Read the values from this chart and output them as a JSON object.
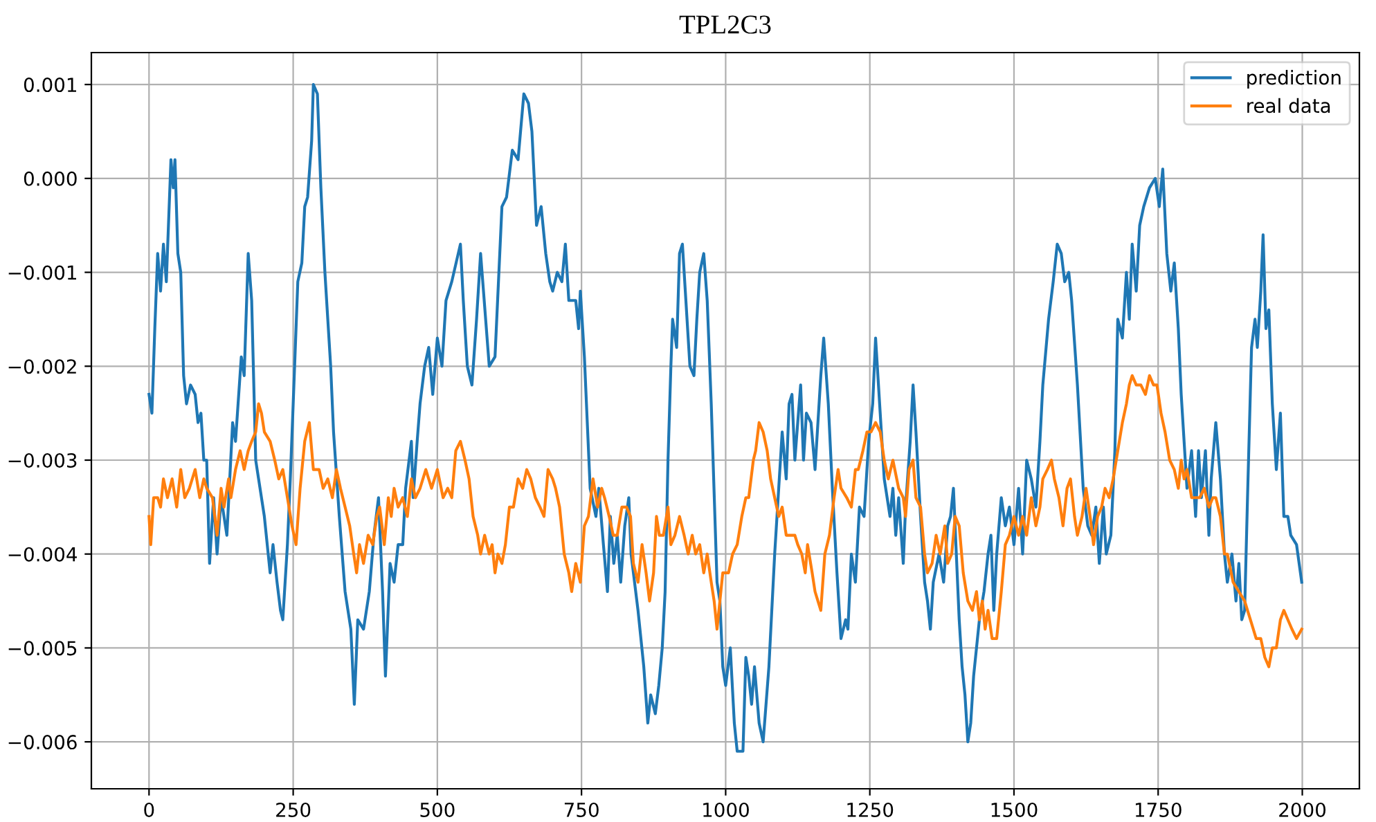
{
  "chart_data": {
    "type": "line",
    "title": "TPL2C3",
    "xlim": [
      -100,
      2099
    ],
    "xticks": [
      0,
      250,
      500,
      750,
      1000,
      1250,
      1500,
      1750,
      2000
    ],
    "ylim": [
      -0.0065,
      0.00134
    ],
    "yticks": [
      {
        "value": 0.001,
        "label": "0.001"
      },
      {
        "value": 0.0,
        "label": "0.000"
      },
      {
        "value": -0.001,
        "label": "−0.001"
      },
      {
        "value": -0.002,
        "label": "−0.002"
      },
      {
        "value": -0.003,
        "label": "−0.003"
      },
      {
        "value": -0.004,
        "label": "−0.004"
      },
      {
        "value": -0.005,
        "label": "−0.005"
      },
      {
        "value": -0.006,
        "label": "−0.006"
      }
    ],
    "grid": true,
    "legend": "top right",
    "series": [
      {
        "name": "prediction",
        "color": "#1f77b4",
        "x": [
          0,
          5,
          10,
          15,
          20,
          25,
          30,
          38,
          42,
          45,
          50,
          55,
          60,
          65,
          72,
          80,
          85,
          90,
          95,
          100,
          105,
          112,
          118,
          125,
          135,
          145,
          150,
          160,
          165,
          172,
          178,
          185,
          190,
          200,
          210,
          215,
          222,
          228,
          232,
          240,
          245,
          250,
          258,
          265,
          270,
          275,
          282,
          285,
          292,
          298,
          305,
          315,
          320,
          330,
          340,
          350,
          356,
          362,
          372,
          382,
          390,
          398,
          405,
          410,
          418,
          425,
          432,
          440,
          445,
          455,
          458,
          465,
          470,
          478,
          485,
          492,
          500,
          508,
          515,
          525,
          540,
          545,
          552,
          560,
          568,
          575,
          580,
          590,
          600,
          612,
          620,
          630,
          640,
          650,
          658,
          664,
          672,
          680,
          688,
          695,
          700,
          708,
          716,
          722,
          728,
          740,
          745,
          748,
          755,
          765,
          775,
          780,
          788,
          795,
          800,
          806,
          812,
          818,
          825,
          832,
          836,
          848,
          858,
          865,
          870,
          878,
          884,
          890,
          895,
          900,
          905,
          908,
          915,
          920,
          925,
          930,
          938,
          945,
          950,
          955,
          962,
          968,
          975,
          985,
          990,
          995,
          1000,
          1008,
          1015,
          1020,
          1030,
          1035,
          1040,
          1045,
          1050,
          1058,
          1065,
          1075,
          1085,
          1092,
          1098,
          1105,
          1110,
          1115,
          1120,
          1125,
          1130,
          1135,
          1140,
          1148,
          1155,
          1165,
          1170,
          1178,
          1185,
          1193,
          1200,
          1208,
          1212,
          1218,
          1225,
          1232,
          1240,
          1248,
          1255,
          1260,
          1268,
          1275,
          1285,
          1290,
          1295,
          1300,
          1308,
          1312,
          1320,
          1325,
          1330,
          1338,
          1342,
          1345,
          1350,
          1355,
          1360,
          1370,
          1378,
          1385,
          1390,
          1395,
          1400,
          1405,
          1410,
          1415,
          1420,
          1425,
          1430,
          1440,
          1448,
          1455,
          1460,
          1465,
          1470,
          1478,
          1485,
          1492,
          1500,
          1508,
          1515,
          1522,
          1530,
          1538,
          1545,
          1550,
          1560,
          1568,
          1575,
          1582,
          1588,
          1595,
          1600,
          1610,
          1620,
          1628,
          1635,
          1642,
          1648,
          1655,
          1660,
          1668,
          1675,
          1680,
          1688,
          1695,
          1700,
          1705,
          1712,
          1718,
          1725,
          1735,
          1745,
          1752,
          1758,
          1765,
          1772,
          1778,
          1785,
          1790,
          1800,
          1808,
          1815,
          1820,
          1825,
          1832,
          1838,
          1842,
          1850,
          1858,
          1865,
          1870,
          1878,
          1885,
          1890,
          1895,
          1900,
          1905,
          1912,
          1918,
          1922,
          1928,
          1932,
          1937,
          1942,
          1948,
          1955,
          1962,
          1968,
          1975,
          1980,
          1990,
          1999
        ],
        "values": [
          -0.0023,
          -0.0025,
          -0.0016,
          -0.0008,
          -0.0012,
          -0.0007,
          -0.0011,
          0.0002,
          -0.0001,
          0.0002,
          -0.0008,
          -0.001,
          -0.0021,
          -0.0024,
          -0.0022,
          -0.0023,
          -0.0026,
          -0.0025,
          -0.003,
          -0.003,
          -0.0041,
          -0.0034,
          -0.004,
          -0.0034,
          -0.0038,
          -0.0026,
          -0.0028,
          -0.0019,
          -0.0021,
          -0.0008,
          -0.0013,
          -0.003,
          -0.0032,
          -0.0036,
          -0.0042,
          -0.0039,
          -0.0043,
          -0.0046,
          -0.0047,
          -0.0039,
          -0.0032,
          -0.0024,
          -0.0011,
          -0.0009,
          -0.0003,
          -0.0002,
          0.0004,
          0.001,
          0.0009,
          -0.0001,
          -0.001,
          -0.002,
          -0.0027,
          -0.0036,
          -0.0044,
          -0.0048,
          -0.0056,
          -0.0047,
          -0.0048,
          -0.0044,
          -0.0038,
          -0.0034,
          -0.0044,
          -0.0053,
          -0.0041,
          -0.0043,
          -0.0039,
          -0.0039,
          -0.0033,
          -0.0028,
          -0.0034,
          -0.0028,
          -0.0024,
          -0.002,
          -0.0018,
          -0.0023,
          -0.0017,
          -0.002,
          -0.0013,
          -0.0011,
          -0.0007,
          -0.0013,
          -0.002,
          -0.0022,
          -0.0015,
          -0.0008,
          -0.0012,
          -0.002,
          -0.0019,
          -0.0003,
          -0.0002,
          0.0003,
          0.0002,
          0.0009,
          0.0008,
          0.0005,
          -0.0005,
          -0.0003,
          -0.0008,
          -0.0011,
          -0.0012,
          -0.001,
          -0.0011,
          -0.0007,
          -0.0013,
          -0.0013,
          -0.0016,
          -0.0012,
          -0.0019,
          -0.0033,
          -0.0036,
          -0.0033,
          -0.0039,
          -0.0044,
          -0.0036,
          -0.0041,
          -0.0038,
          -0.0043,
          -0.0037,
          -0.0034,
          -0.004,
          -0.0046,
          -0.0052,
          -0.0058,
          -0.0055,
          -0.0057,
          -0.0054,
          -0.005,
          -0.0044,
          -0.003,
          -0.002,
          -0.0015,
          -0.0018,
          -0.0008,
          -0.0007,
          -0.0012,
          -0.002,
          -0.0021,
          -0.0015,
          -0.001,
          -0.0008,
          -0.0013,
          -0.0024,
          -0.0043,
          -0.0045,
          -0.0052,
          -0.0054,
          -0.005,
          -0.0058,
          -0.0061,
          -0.0061,
          -0.0051,
          -0.0053,
          -0.0056,
          -0.0052,
          -0.0058,
          -0.006,
          -0.0052,
          -0.004,
          -0.0033,
          -0.0027,
          -0.0032,
          -0.0024,
          -0.0023,
          -0.003,
          -0.0026,
          -0.0022,
          -0.003,
          -0.0025,
          -0.0026,
          -0.0031,
          -0.0021,
          -0.0017,
          -0.0024,
          -0.0033,
          -0.0042,
          -0.0049,
          -0.0047,
          -0.0048,
          -0.004,
          -0.0043,
          -0.0035,
          -0.0036,
          -0.0028,
          -0.0024,
          -0.0017,
          -0.0025,
          -0.0032,
          -0.0036,
          -0.0033,
          -0.0038,
          -0.0034,
          -0.0041,
          -0.0035,
          -0.0028,
          -0.0022,
          -0.0027,
          -0.0036,
          -0.004,
          -0.0043,
          -0.0045,
          -0.0048,
          -0.0043,
          -0.004,
          -0.0043,
          -0.0037,
          -0.0036,
          -0.0033,
          -0.004,
          -0.0047,
          -0.0052,
          -0.0055,
          -0.006,
          -0.0058,
          -0.0053,
          -0.0047,
          -0.0044,
          -0.004,
          -0.0038,
          -0.0046,
          -0.004,
          -0.0034,
          -0.0037,
          -0.0035,
          -0.0039,
          -0.0033,
          -0.004,
          -0.003,
          -0.0032,
          -0.0035,
          -0.0028,
          -0.0022,
          -0.0015,
          -0.0011,
          -0.0007,
          -0.0008,
          -0.0011,
          -0.001,
          -0.0013,
          -0.0022,
          -0.0033,
          -0.0037,
          -0.0038,
          -0.0035,
          -0.0041,
          -0.0035,
          -0.004,
          -0.0038,
          -0.0029,
          -0.0015,
          -0.0017,
          -0.001,
          -0.0015,
          -0.0007,
          -0.0012,
          -0.0005,
          -0.0003,
          -0.0001,
          0.0,
          -0.0003,
          0.0001,
          -0.0008,
          -0.0012,
          -0.0009,
          -0.0016,
          -0.0023,
          -0.0033,
          -0.0029,
          -0.0036,
          -0.0029,
          -0.0034,
          -0.0029,
          -0.0038,
          -0.0032,
          -0.0026,
          -0.0032,
          -0.004,
          -0.0043,
          -0.004,
          -0.0045,
          -0.0041,
          -0.0047,
          -0.0046,
          -0.0034,
          -0.0018,
          -0.0015,
          -0.0018,
          -0.0012,
          -0.0006,
          -0.0016,
          -0.0014,
          -0.0024,
          -0.0031,
          -0.0025,
          -0.0036,
          -0.0036,
          -0.0038,
          -0.0039,
          -0.0043
        ]
      },
      {
        "name": "real data",
        "color": "#ff7f0e",
        "x": [
          0,
          3,
          8,
          15,
          20,
          25,
          32,
          40,
          48,
          55,
          62,
          70,
          80,
          88,
          95,
          100,
          110,
          118,
          125,
          130,
          138,
          142,
          150,
          158,
          165,
          172,
          178,
          185,
          190,
          195,
          200,
          210,
          218,
          225,
          232,
          240,
          248,
          255,
          262,
          270,
          278,
          285,
          295,
          302,
          310,
          318,
          325,
          332,
          340,
          348,
          355,
          360,
          365,
          372,
          380,
          388,
          395,
          400,
          408,
          415,
          420,
          425,
          432,
          440,
          448,
          455,
          462,
          470,
          480,
          490,
          500,
          510,
          518,
          525,
          532,
          540,
          548,
          555,
          562,
          570,
          575,
          582,
          590,
          595,
          600,
          605,
          612,
          618,
          625,
          632,
          640,
          648,
          655,
          662,
          670,
          678,
          685,
          692,
          700,
          705,
          712,
          720,
          728,
          733,
          740,
          748,
          755,
          762,
          770,
          778,
          785,
          790,
          798,
          805,
          812,
          820,
          828,
          835,
          840,
          848,
          855,
          862,
          868,
          875,
          880,
          885,
          892,
          900,
          905,
          912,
          920,
          928,
          935,
          942,
          948,
          955,
          962,
          968,
          975,
          980,
          985,
          990,
          995,
          1005,
          1012,
          1020,
          1028,
          1035,
          1040,
          1048,
          1052,
          1058,
          1065,
          1072,
          1078,
          1085,
          1092,
          1098,
          1105,
          1112,
          1120,
          1125,
          1132,
          1138,
          1142,
          1150,
          1155,
          1160,
          1165,
          1172,
          1180,
          1188,
          1195,
          1200,
          1210,
          1218,
          1225,
          1230,
          1238,
          1245,
          1252,
          1260,
          1268,
          1275,
          1282,
          1290,
          1300,
          1308,
          1312,
          1318,
          1325,
          1330,
          1338,
          1345,
          1350,
          1358,
          1365,
          1372,
          1380,
          1385,
          1392,
          1398,
          1405,
          1412,
          1420,
          1428,
          1435,
          1440,
          1445,
          1450,
          1455,
          1462,
          1470,
          1478,
          1485,
          1492,
          1500,
          1508,
          1515,
          1522,
          1530,
          1538,
          1545,
          1550,
          1558,
          1565,
          1570,
          1578,
          1585,
          1592,
          1598,
          1605,
          1610,
          1618,
          1625,
          1632,
          1638,
          1645,
          1652,
          1658,
          1665,
          1672,
          1680,
          1688,
          1695,
          1700,
          1705,
          1712,
          1720,
          1728,
          1735,
          1742,
          1748,
          1755,
          1762,
          1770,
          1778,
          1785,
          1790,
          1795,
          1800,
          1808,
          1815,
          1822,
          1830,
          1838,
          1845,
          1850,
          1858,
          1865,
          1870,
          1880,
          1890,
          1900,
          1910,
          1920,
          1928,
          1935,
          1942,
          1948,
          1955,
          1962,
          1968,
          1975,
          1982,
          1990,
          1999
        ],
        "values": [
          -0.0036,
          -0.0039,
          -0.0034,
          -0.0034,
          -0.0035,
          -0.0032,
          -0.0034,
          -0.0032,
          -0.0035,
          -0.0031,
          -0.0034,
          -0.0033,
          -0.0031,
          -0.0034,
          -0.0032,
          -0.0033,
          -0.0034,
          -0.0038,
          -0.0033,
          -0.0035,
          -0.0032,
          -0.0034,
          -0.0031,
          -0.0029,
          -0.0031,
          -0.0029,
          -0.0028,
          -0.0027,
          -0.0024,
          -0.0025,
          -0.0027,
          -0.0028,
          -0.003,
          -0.0032,
          -0.0031,
          -0.0034,
          -0.0037,
          -0.0039,
          -0.0033,
          -0.0028,
          -0.0026,
          -0.0031,
          -0.0031,
          -0.0033,
          -0.0032,
          -0.0034,
          -0.0031,
          -0.0033,
          -0.0035,
          -0.0037,
          -0.004,
          -0.0042,
          -0.0039,
          -0.0041,
          -0.0038,
          -0.0039,
          -0.0036,
          -0.0035,
          -0.0039,
          -0.0034,
          -0.0036,
          -0.0033,
          -0.0035,
          -0.0034,
          -0.0036,
          -0.0032,
          -0.0034,
          -0.0033,
          -0.0031,
          -0.0033,
          -0.0031,
          -0.0034,
          -0.0033,
          -0.0034,
          -0.0029,
          -0.0028,
          -0.003,
          -0.0032,
          -0.0036,
          -0.0038,
          -0.004,
          -0.0038,
          -0.004,
          -0.0039,
          -0.0042,
          -0.004,
          -0.0041,
          -0.0039,
          -0.0035,
          -0.0035,
          -0.0032,
          -0.0033,
          -0.0031,
          -0.0032,
          -0.0034,
          -0.0035,
          -0.0036,
          -0.0031,
          -0.0032,
          -0.0033,
          -0.0035,
          -0.004,
          -0.0042,
          -0.0044,
          -0.0041,
          -0.0043,
          -0.0037,
          -0.0036,
          -0.0032,
          -0.0035,
          -0.0033,
          -0.0034,
          -0.0036,
          -0.0038,
          -0.0038,
          -0.0035,
          -0.0035,
          -0.0036,
          -0.0041,
          -0.0043,
          -0.0039,
          -0.0042,
          -0.0045,
          -0.0042,
          -0.0036,
          -0.0038,
          -0.0038,
          -0.0035,
          -0.0039,
          -0.0038,
          -0.0036,
          -0.0038,
          -0.004,
          -0.0038,
          -0.004,
          -0.0039,
          -0.0042,
          -0.004,
          -0.0043,
          -0.0045,
          -0.0048,
          -0.0045,
          -0.0042,
          -0.0042,
          -0.004,
          -0.0039,
          -0.0036,
          -0.0034,
          -0.0034,
          -0.003,
          -0.0029,
          -0.0026,
          -0.0027,
          -0.0029,
          -0.0032,
          -0.0034,
          -0.0036,
          -0.0035,
          -0.0038,
          -0.0038,
          -0.0038,
          -0.0039,
          -0.004,
          -0.0042,
          -0.0039,
          -0.0042,
          -0.0044,
          -0.0045,
          -0.0046,
          -0.004,
          -0.0038,
          -0.0034,
          -0.0031,
          -0.0033,
          -0.0034,
          -0.0035,
          -0.0031,
          -0.0031,
          -0.0029,
          -0.0027,
          -0.0027,
          -0.0026,
          -0.0027,
          -0.003,
          -0.0032,
          -0.003,
          -0.0033,
          -0.0034,
          -0.0036,
          -0.0031,
          -0.003,
          -0.0034,
          -0.0035,
          -0.004,
          -0.0042,
          -0.0041,
          -0.0038,
          -0.004,
          -0.0037,
          -0.0041,
          -0.004,
          -0.0036,
          -0.0037,
          -0.0042,
          -0.0045,
          -0.0046,
          -0.0044,
          -0.0047,
          -0.0045,
          -0.0048,
          -0.0046,
          -0.0049,
          -0.0049,
          -0.0044,
          -0.0039,
          -0.0038,
          -0.0036,
          -0.0038,
          -0.0036,
          -0.0038,
          -0.0034,
          -0.0037,
          -0.0035,
          -0.0032,
          -0.0031,
          -0.003,
          -0.0032,
          -0.0034,
          -0.0037,
          -0.0033,
          -0.0032,
          -0.0036,
          -0.0038,
          -0.0036,
          -0.0033,
          -0.0036,
          -0.0039,
          -0.0036,
          -0.0035,
          -0.0033,
          -0.0034,
          -0.0032,
          -0.0029,
          -0.0026,
          -0.0024,
          -0.0022,
          -0.0021,
          -0.0022,
          -0.0022,
          -0.0023,
          -0.0021,
          -0.0022,
          -0.0022,
          -0.0025,
          -0.0027,
          -0.003,
          -0.0031,
          -0.0033,
          -0.003,
          -0.0032,
          -0.0031,
          -0.0034,
          -0.0034,
          -0.0034,
          -0.0033,
          -0.0035,
          -0.0034,
          -0.0034,
          -0.0036,
          -0.004,
          -0.004,
          -0.0043,
          -0.0044,
          -0.0045,
          -0.0047,
          -0.0049,
          -0.0049,
          -0.0051,
          -0.0052,
          -0.005,
          -0.005,
          -0.0047,
          -0.0046,
          -0.0047,
          -0.0048,
          -0.0049,
          -0.0048
        ]
      }
    ]
  }
}
